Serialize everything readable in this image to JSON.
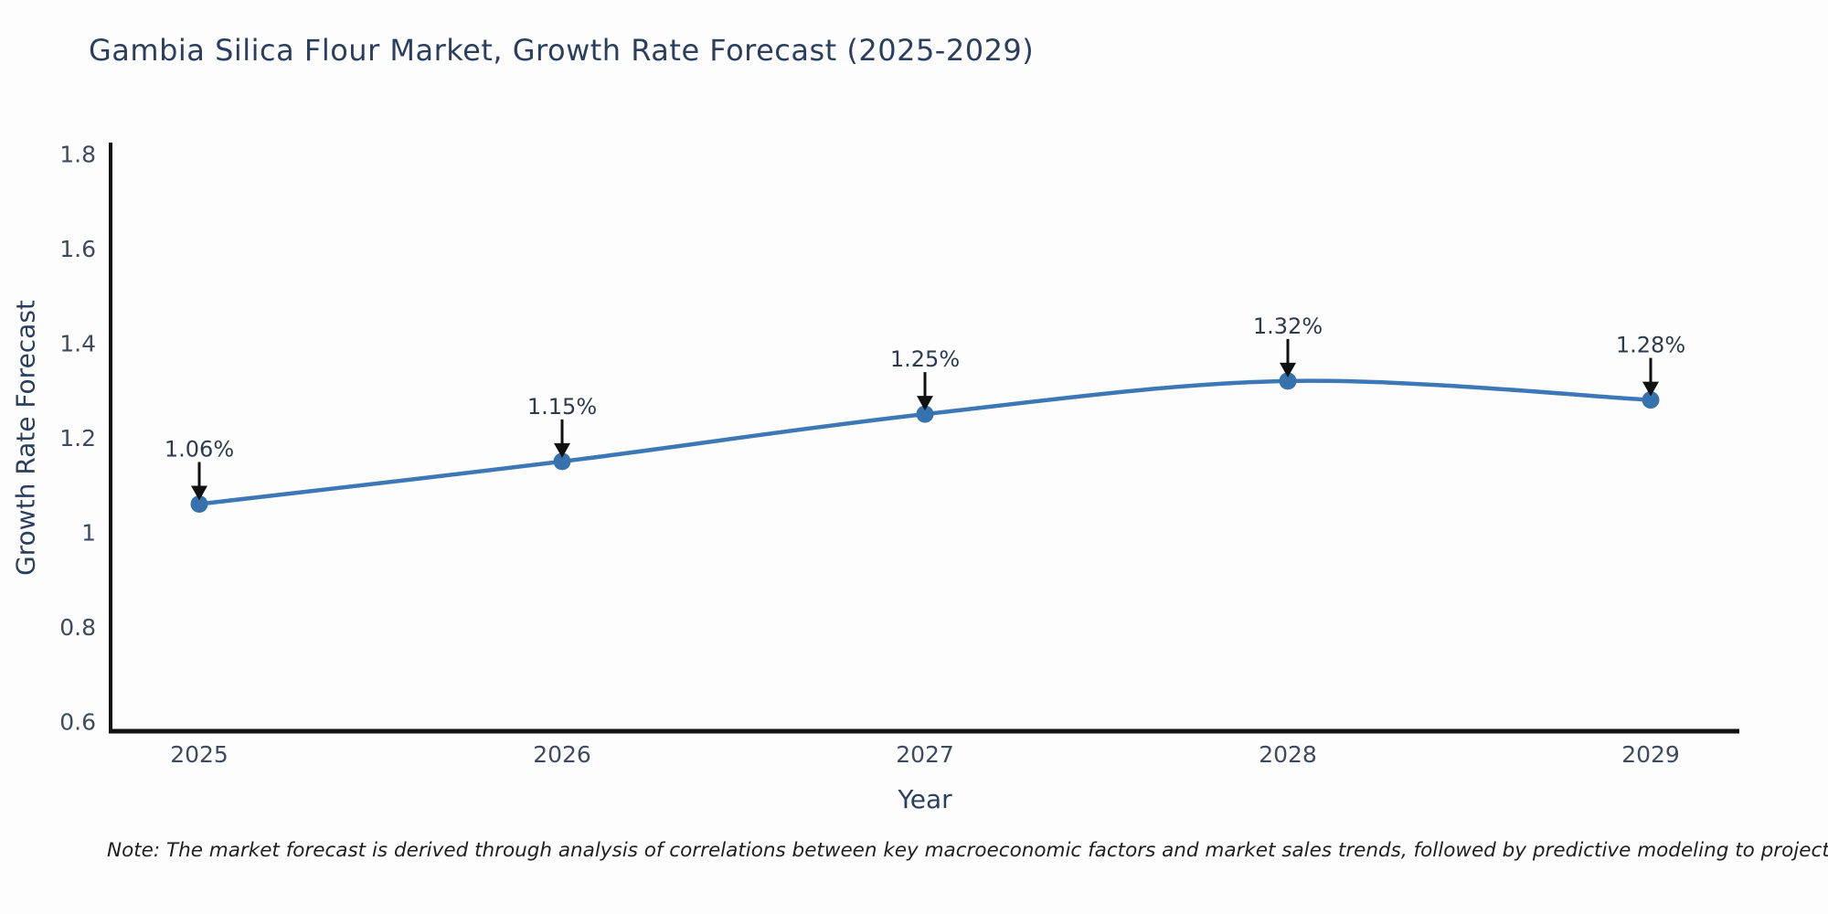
{
  "page": {
    "note": "Note: The market forecast is derived through analysis of correlations between key macroeconomic factors and market sales trends, followed by predictive modeling to project future sales"
  },
  "chart_data": {
    "type": "line",
    "title": "Gambia Silica Flour Market, Growth Rate Forecast (2025-2029)",
    "xlabel": "Year",
    "ylabel": "Growth Rate Forecast",
    "categories": [
      2025,
      2026,
      2027,
      2028,
      2029
    ],
    "values": [
      1.06,
      1.15,
      1.25,
      1.32,
      1.28
    ],
    "point_labels": [
      "1.06%",
      "1.15%",
      "1.25%",
      "1.32%",
      "1.28%"
    ],
    "yticks": [
      0.6,
      0.8,
      1,
      1.2,
      1.4,
      1.6,
      1.8
    ],
    "ylim": [
      0.58,
      1.82
    ],
    "grid": false,
    "legend": "none",
    "line_shape": "spline",
    "colors": {
      "line": "#3c78b5",
      "marker": "#3673ae",
      "axis": "#111111",
      "title_text": "#2a3f5f",
      "tick_text": "#3f4a5f",
      "annotation_text": "#2e3a4e",
      "annotation_arrow": "#111111",
      "note_text": "#1f1f1f",
      "background": "#fdfdfd"
    }
  }
}
